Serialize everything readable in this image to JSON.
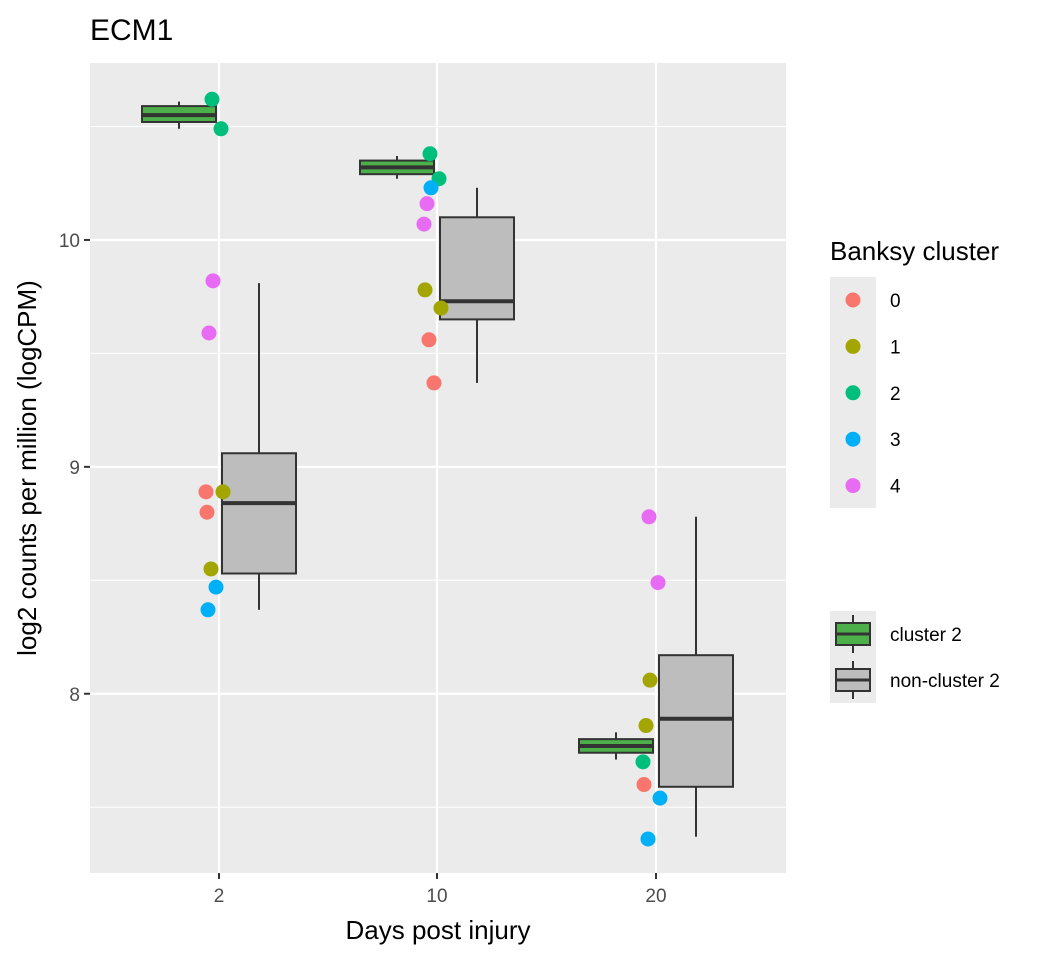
{
  "chart_data": {
    "type": "box",
    "title": "ECM1",
    "xlabel": "Days post injury",
    "ylabel": "log2 counts per million (logCPM)",
    "categories": [
      "2",
      "10",
      "20"
    ],
    "y_ticks": [
      8,
      9,
      10
    ],
    "y_tick_labels": [
      "8",
      "9",
      "10"
    ],
    "ylim": [
      7.21,
      10.78
    ],
    "grid": true,
    "point_legend": {
      "title": "Banksy cluster",
      "entries": [
        {
          "label": "0",
          "color": "#F8766D"
        },
        {
          "label": "1",
          "color": "#A3A500"
        },
        {
          "label": "2",
          "color": "#00BF7D"
        },
        {
          "label": "3",
          "color": "#00B0F6"
        },
        {
          "label": "4",
          "color": "#E76BF3"
        }
      ]
    },
    "box_legend": {
      "entries": [
        {
          "label": "cluster 2",
          "color": "#4DAF4A"
        },
        {
          "label": "non-cluster 2",
          "color": "#BDBDBD"
        }
      ]
    },
    "box_series": [
      {
        "name": "cluster 2",
        "color": "#4DAF4A",
        "boxes": [
          {
            "category": "2",
            "min": 10.49,
            "q1": 10.52,
            "median": 10.55,
            "q3": 10.59,
            "max": 10.61
          },
          {
            "category": "10",
            "min": 10.27,
            "q1": 10.29,
            "median": 10.32,
            "q3": 10.35,
            "max": 10.37
          },
          {
            "category": "20",
            "min": 7.71,
            "q1": 7.74,
            "median": 7.77,
            "q3": 7.8,
            "max": 7.83
          }
        ]
      },
      {
        "name": "non-cluster 2",
        "color": "#BDBDBD",
        "boxes": [
          {
            "category": "2",
            "min": 8.37,
            "q1": 8.53,
            "median": 8.84,
            "q3": 9.06,
            "max": 9.81
          },
          {
            "category": "10",
            "min": 9.37,
            "q1": 9.65,
            "median": 9.73,
            "q3": 10.1,
            "max": 10.23
          },
          {
            "category": "20",
            "min": 7.37,
            "q1": 7.59,
            "median": 7.89,
            "q3": 8.17,
            "max": 8.78
          }
        ]
      }
    ],
    "points": [
      {
        "category": "2",
        "cluster": "2",
        "y": 10.62
      },
      {
        "category": "2",
        "cluster": "2",
        "y": 10.49
      },
      {
        "category": "2",
        "cluster": "4",
        "y": 9.82
      },
      {
        "category": "2",
        "cluster": "4",
        "y": 9.59
      },
      {
        "category": "2",
        "cluster": "0",
        "y": 8.89
      },
      {
        "category": "2",
        "cluster": "0",
        "y": 8.8
      },
      {
        "category": "2",
        "cluster": "1",
        "y": 8.89
      },
      {
        "category": "2",
        "cluster": "1",
        "y": 8.55
      },
      {
        "category": "2",
        "cluster": "3",
        "y": 8.47
      },
      {
        "category": "2",
        "cluster": "3",
        "y": 8.37
      },
      {
        "category": "10",
        "cluster": "2",
        "y": 10.38
      },
      {
        "category": "10",
        "cluster": "2",
        "y": 10.27
      },
      {
        "category": "10",
        "cluster": "3",
        "y": 10.23
      },
      {
        "category": "10",
        "cluster": "4",
        "y": 10.16
      },
      {
        "category": "10",
        "cluster": "4",
        "y": 10.07
      },
      {
        "category": "10",
        "cluster": "1",
        "y": 9.78
      },
      {
        "category": "10",
        "cluster": "1",
        "y": 9.7
      },
      {
        "category": "10",
        "cluster": "0",
        "y": 9.56
      },
      {
        "category": "10",
        "cluster": "0",
        "y": 9.37
      },
      {
        "category": "20",
        "cluster": "4",
        "y": 8.78
      },
      {
        "category": "20",
        "cluster": "4",
        "y": 8.49
      },
      {
        "category": "20",
        "cluster": "1",
        "y": 8.06
      },
      {
        "category": "20",
        "cluster": "1",
        "y": 7.86
      },
      {
        "category": "20",
        "cluster": "2",
        "y": 7.7
      },
      {
        "category": "20",
        "cluster": "0",
        "y": 7.6
      },
      {
        "category": "20",
        "cluster": "3",
        "y": 7.54
      },
      {
        "category": "20",
        "cluster": "3",
        "y": 7.36
      }
    ]
  }
}
